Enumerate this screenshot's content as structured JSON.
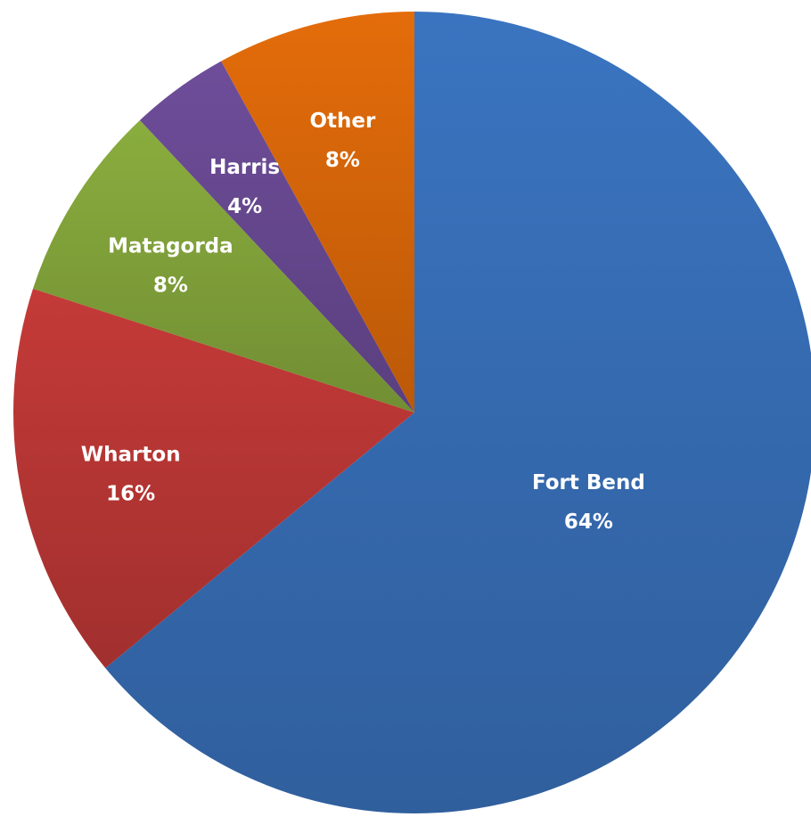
{
  "chart_data": {
    "type": "pie",
    "unit": "%",
    "start": "12 o'clock",
    "direction": "clockwise",
    "legend": "none (labels on slices)",
    "slices": [
      {
        "name": "Fort Bend",
        "value": 64,
        "label": "64%",
        "color": "#3a74c0"
      },
      {
        "name": "Wharton",
        "value": 16,
        "label": "16%",
        "color": "#c43a38"
      },
      {
        "name": "Matagorda",
        "value": 8,
        "label": "8%",
        "color": "#8aad3e"
      },
      {
        "name": "Harris",
        "value": 4,
        "label": "4%",
        "color": "#6e4d9a"
      },
      {
        "name": "Other",
        "value": 8,
        "label": "8%",
        "color": "#e46c0a"
      }
    ]
  }
}
